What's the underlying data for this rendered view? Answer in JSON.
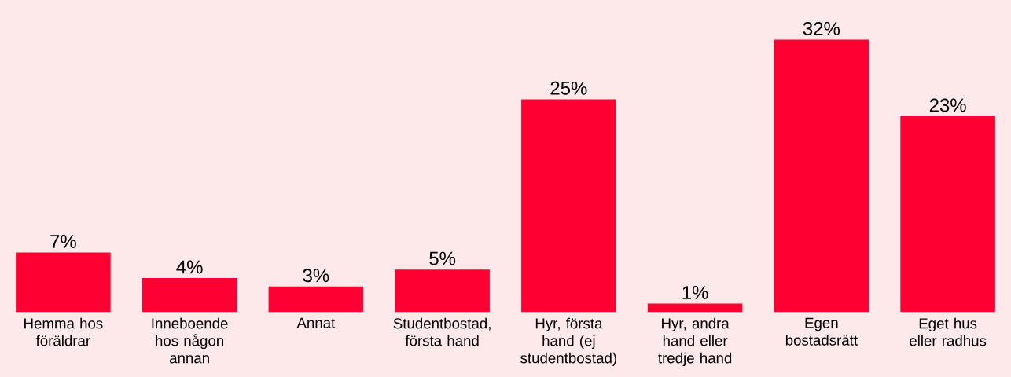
{
  "chart_data": {
    "type": "bar",
    "categories": [
      "Hemma hos föräldrar",
      "Inneboende hos någon annan",
      "Annat",
      "Studentbostad, första hand",
      "Hyr, första hand (ej studentbostad)",
      "Hyr, andra hand eller tredje hand",
      "Egen bostadsrätt",
      "Eget hus eller radhus"
    ],
    "values": [
      7,
      4,
      3,
      5,
      25,
      1,
      32,
      23
    ],
    "value_labels": [
      "7%",
      "4%",
      "3%",
      "5%",
      "25%",
      "1%",
      "32%",
      "23%"
    ],
    "color": "#ff0033"
  }
}
